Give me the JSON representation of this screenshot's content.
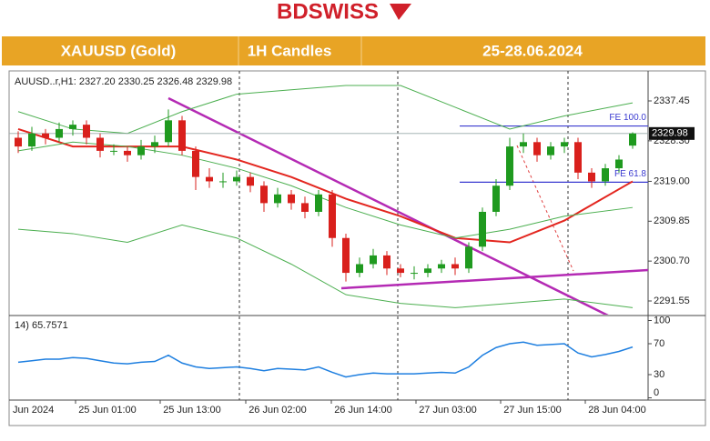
{
  "header": {
    "brand": "BDSWISS",
    "symbol": "XAUUSD (Gold)",
    "timeframe": "1H Candles",
    "period": "25-28.06.2024"
  },
  "chart_data": {
    "type": "candlestick",
    "info": "AUUSD..r,H1: 2327.20 2330.25 2326.48 2329.98",
    "open": [
      2329,
      2327,
      2330,
      2329,
      2331,
      2332,
      2329,
      2326,
      2326,
      2325,
      2327,
      2328,
      2333,
      2326,
      2320,
      2319,
      2319,
      2320,
      2318,
      2314,
      2316,
      2314,
      2312,
      2316,
      2306,
      2298,
      2300,
      2302,
      2299,
      2298,
      2298,
      2299,
      2300,
      2299,
      2304,
      2312,
      2318,
      2327,
      2328,
      2325,
      2327,
      2328,
      2321,
      2319,
      2322,
      2327.2
    ],
    "high": [
      2330.5,
      2331.5,
      2331,
      2332.5,
      2333,
      2333,
      2330,
      2327.5,
      2327,
      2328.5,
      2329.5,
      2335.5,
      2334,
      2327,
      2322,
      2321,
      2321.5,
      2321,
      2319,
      2317.5,
      2317,
      2315.5,
      2317,
      2317,
      2307,
      2301.5,
      2303.5,
      2303,
      2300,
      2299.5,
      2300,
      2301,
      2301.5,
      2305,
      2313,
      2319.5,
      2329,
      2330,
      2329,
      2328,
      2329,
      2329,
      2322,
      2323,
      2325,
      2330.25
    ],
    "low": [
      2325.5,
      2326,
      2327.5,
      2328,
      2329.5,
      2327.5,
      2324.5,
      2325,
      2323.5,
      2324,
      2325.5,
      2327,
      2325,
      2317,
      2317.5,
      2317.5,
      2318,
      2316.5,
      2312,
      2313,
      2312.5,
      2310.5,
      2311,
      2304,
      2296,
      2297,
      2299,
      2297.5,
      2297,
      2296.5,
      2297,
      2298,
      2297.5,
      2298,
      2303,
      2311,
      2317,
      2325.5,
      2323.5,
      2324,
      2325.5,
      2319.5,
      2317.5,
      2318,
      2321,
      2326.48
    ],
    "close": [
      2327,
      2330,
      2329,
      2331,
      2332,
      2329,
      2326,
      2326,
      2325,
      2327,
      2328,
      2333,
      2326,
      2320,
      2319,
      2319,
      2320,
      2318,
      2314,
      2316,
      2314,
      2312,
      2316,
      2306,
      2298,
      2300,
      2302,
      2299,
      2298,
      2298,
      2299,
      2300,
      2299,
      2304,
      2312,
      2318,
      2327,
      2328,
      2325,
      2327,
      2328,
      2321,
      2319,
      2322,
      2324,
      2329.98
    ],
    "up_color": "#1f9a1f",
    "down_color": "#d9201c",
    "overlay_x": [
      0,
      4,
      8,
      12,
      16,
      20,
      24,
      28,
      32,
      36,
      40,
      45
    ],
    "overlays": [
      {
        "color": "#e3261f",
        "values": [
          2331,
          2327,
          2327,
          2327,
          2324,
          2320,
          2315,
          2311,
          2306,
          2305,
          2310,
          2319
        ]
      },
      {
        "color": "#4caf50",
        "values": [
          2335,
          2331,
          2330,
          2335,
          2339,
          2340,
          2341,
          2341,
          2336,
          2331,
          2334,
          2337
        ]
      },
      {
        "color": "#4caf50",
        "values": [
          2326,
          2328,
          2327,
          2325,
          2322,
          2318,
          2313,
          2309,
          2306,
          2308,
          2311,
          2313
        ]
      },
      {
        "color": "#4caf50",
        "values": [
          2308,
          2307,
          2305,
          2309,
          2306,
          2300,
          2293,
          2291,
          2290,
          2291,
          2292,
          2290
        ]
      }
    ],
    "levels": [
      {
        "label": "FE 100.0",
        "value": 2331.7
      },
      {
        "label": "FE 61.8",
        "value": 2318.8
      }
    ],
    "level_color": "#3a3ad0",
    "ylim": [
      2288,
      2341
    ],
    "yticks": [
      2291.55,
      {
        "value": 2300.7,
        "label": "2300.70"
      },
      2309.85,
      {
        "value": 2319,
        "label": "2319.00"
      },
      {
        "value": 2328.3,
        "label": "2328.30"
      },
      2337.45
    ],
    "x_labels": [
      "Jun 2024",
      "25 Jun 01:00",
      "25 Jun 13:00",
      "26 Jun 02:00",
      "26 Jun 14:00",
      "27 Jun 03:00",
      "27 Jun 15:00",
      "28 Jun 04:00"
    ],
    "rsi": {
      "label": "14) 65.7571",
      "color": "#1e7fe0",
      "ylim": [
        0,
        100
      ],
      "yticks": [
        0,
        30,
        70,
        100
      ],
      "values": [
        46,
        48,
        50,
        50,
        52,
        51,
        48,
        45,
        44,
        46,
        47,
        55,
        45,
        40,
        38,
        39,
        40,
        38,
        35,
        38,
        37,
        36,
        40,
        33,
        27,
        30,
        32,
        31,
        31,
        31,
        32,
        33,
        32,
        40,
        55,
        65,
        70,
        72,
        68,
        69,
        70,
        58,
        53,
        56,
        60,
        65.76
      ]
    }
  }
}
